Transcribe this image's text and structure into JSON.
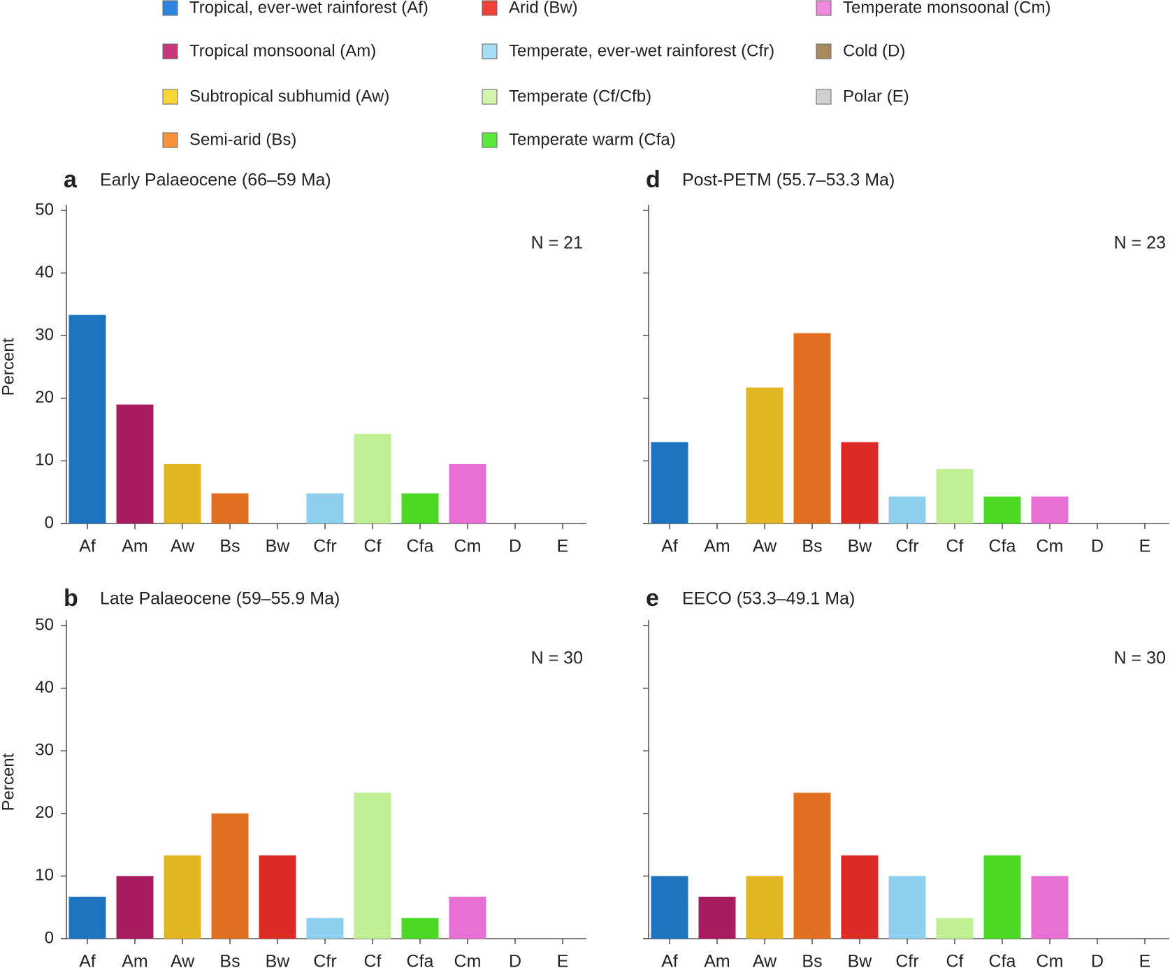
{
  "legend": [
    {
      "name": "Tropical, ever-wet rainforest (Af)",
      "color": "#2f85dd"
    },
    {
      "name": "Tropical monsoonal (Am)",
      "color": "#c8377a"
    },
    {
      "name": "Subtropical subhumid (Aw)",
      "color": "#fbd63a"
    },
    {
      "name": "Semi-arid (Bs)",
      "color": "#f7913b"
    },
    {
      "name": "Arid (Bw)",
      "color": "#f0403a"
    },
    {
      "name": "Temperate, ever-wet rainforest (Cfr)",
      "color": "#a6dcf6"
    },
    {
      "name": "Temperate (Cf/Cfb)",
      "color": "#d2f6ad"
    },
    {
      "name": "Temperate warm (Cfa)",
      "color": "#5ae83a"
    },
    {
      "name": "Temperate monsoonal (Cm)",
      "color": "#f08ae0"
    },
    {
      "name": "Cold (D)",
      "color": "#a88a5e"
    },
    {
      "name": "Polar (E)",
      "color": "#d0d0d0"
    }
  ],
  "chart_data": [
    {
      "type": "bar",
      "panel": "a",
      "title": "Early Palaeocene (66–59 Ma)",
      "annotation": "N = 21",
      "y_label": "Percent",
      "show_ytick_labels": true,
      "categories": [
        "Af",
        "Am",
        "Aw",
        "Bs",
        "Bw",
        "Cfr",
        "Cf",
        "Cfa",
        "Cm",
        "D",
        "E"
      ],
      "values": [
        33.3,
        19.0,
        9.5,
        4.8,
        0,
        4.8,
        14.3,
        4.8,
        9.5,
        0,
        0
      ],
      "colors": [
        "#1f74c0",
        "#a81b5e",
        "#e0b622",
        "#e07020",
        "#dd2a25",
        "#8ecfee",
        "#c0ef95",
        "#4cd925",
        "#e86fd3",
        "#9a7a4a",
        "#cccccc"
      ],
      "ylim": [
        0,
        50
      ],
      "yticks": [
        0,
        10,
        20,
        30,
        40,
        50
      ]
    },
    {
      "type": "bar",
      "panel": "d",
      "title": "Post-PETM (55.7–53.3 Ma)",
      "annotation": "N = 23",
      "show_ytick_labels": false,
      "categories": [
        "Af",
        "Am",
        "Aw",
        "Bs",
        "Bw",
        "Cfr",
        "Cf",
        "Cfa",
        "Cm",
        "D",
        "E"
      ],
      "values": [
        13.0,
        0,
        21.7,
        30.4,
        13.0,
        4.3,
        8.7,
        4.3,
        4.3,
        0,
        0
      ],
      "colors": [
        "#1f74c0",
        "#a81b5e",
        "#e0b622",
        "#e07020",
        "#dd2a25",
        "#8ecfee",
        "#c0ef95",
        "#4cd925",
        "#e86fd3",
        "#9a7a4a",
        "#cccccc"
      ],
      "ylim": [
        0,
        50
      ],
      "yticks": [
        0,
        10,
        20,
        30,
        40,
        50
      ]
    },
    {
      "type": "bar",
      "panel": "b",
      "title": "Late Palaeocene (59–55.9 Ma)",
      "annotation": "N = 30",
      "y_label": "Percent",
      "show_ytick_labels": true,
      "categories": [
        "Af",
        "Am",
        "Aw",
        "Bs",
        "Bw",
        "Cfr",
        "Cf",
        "Cfa",
        "Cm",
        "D",
        "E"
      ],
      "values": [
        6.7,
        10.0,
        13.3,
        20.0,
        13.3,
        3.3,
        23.3,
        3.3,
        6.7,
        0,
        0
      ],
      "colors": [
        "#1f74c0",
        "#a81b5e",
        "#e0b622",
        "#e07020",
        "#dd2a25",
        "#8ecfee",
        "#c0ef95",
        "#4cd925",
        "#e86fd3",
        "#9a7a4a",
        "#cccccc"
      ],
      "ylim": [
        0,
        50
      ],
      "yticks": [
        0,
        10,
        20,
        30,
        40,
        50
      ]
    },
    {
      "type": "bar",
      "panel": "e",
      "title": "EECO (53.3–49.1 Ma)",
      "annotation": "N = 30",
      "show_ytick_labels": false,
      "categories": [
        "Af",
        "Am",
        "Aw",
        "Bs",
        "Bw",
        "Cfr",
        "Cf",
        "Cfa",
        "Cm",
        "D",
        "E"
      ],
      "values": [
        10.0,
        6.7,
        10.0,
        23.3,
        13.3,
        10.0,
        3.3,
        13.3,
        10.0,
        0,
        0
      ],
      "colors": [
        "#1f74c0",
        "#a81b5e",
        "#e0b622",
        "#e07020",
        "#dd2a25",
        "#8ecfee",
        "#c0ef95",
        "#4cd925",
        "#e86fd3",
        "#9a7a4a",
        "#cccccc"
      ],
      "ylim": [
        0,
        50
      ],
      "yticks": [
        0,
        10,
        20,
        30,
        40,
        50
      ]
    }
  ]
}
